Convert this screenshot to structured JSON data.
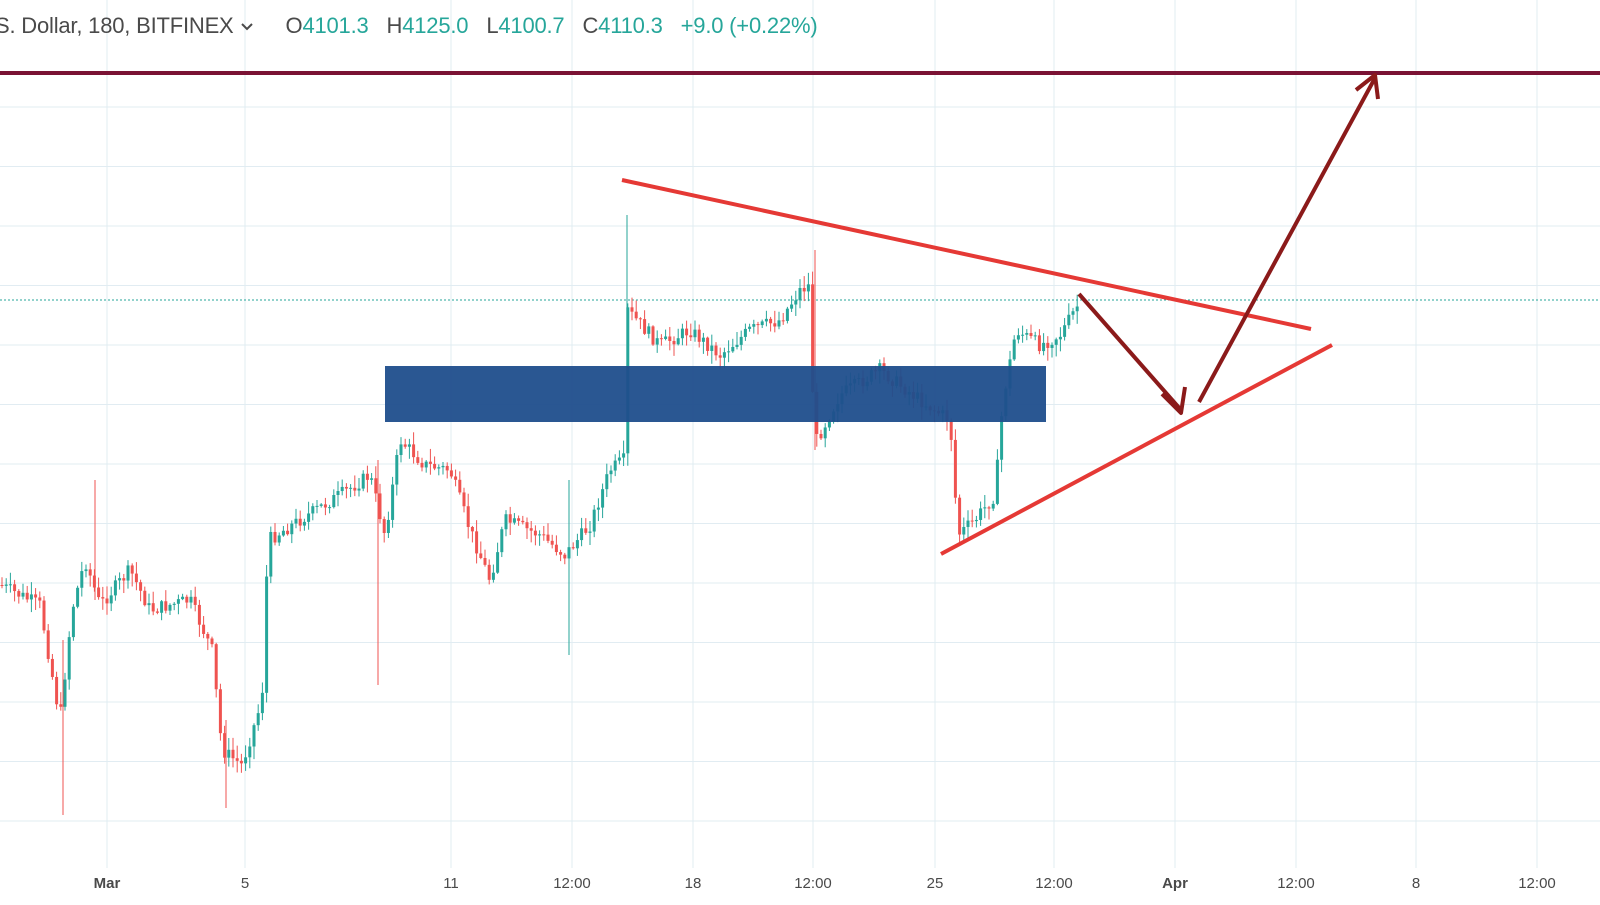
{
  "legend": {
    "symbol": "S. Dollar, 180, BITFINEX",
    "open_key": "O",
    "open": "4101.3",
    "high_key": "H",
    "high": "4125.0",
    "low_key": "L",
    "low": "4100.7",
    "close_key": "C",
    "close": "4110.3",
    "change": "+9.0 (+0.22%)",
    "chevron": "chevron-down-icon"
  },
  "colors": {
    "up": "#26a69a",
    "down": "#ef5350",
    "resistance": "#7a1234",
    "trendline": "#e53935",
    "arrow": "#8b1a1a",
    "zone": "#1f4e8c",
    "grid": "#e1ecf2",
    "last_price_line": "#26a69a"
  },
  "chart_data": {
    "type": "candlestick",
    "interval": "180",
    "exchange": "BITFINEX",
    "x_axis": {
      "ticks": [
        {
          "label": "Mar",
          "bold": true
        },
        {
          "label": "5",
          "bold": false
        },
        {
          "label": "11",
          "bold": false
        },
        {
          "label": "12:00",
          "bold": false
        },
        {
          "label": "18",
          "bold": false
        },
        {
          "label": "12:00",
          "bold": false
        },
        {
          "label": "25",
          "bold": false
        },
        {
          "label": "12:00",
          "bold": false
        },
        {
          "label": "Apr",
          "bold": true
        },
        {
          "label": "12:00",
          "bold": false
        },
        {
          "label": "8",
          "bold": false
        },
        {
          "label": "12:00",
          "bold": false
        }
      ]
    },
    "grid": true,
    "last_bar": {
      "open": 4101.3,
      "high": 4125.0,
      "low": 4100.7,
      "close": 4110.3,
      "change": 9.0,
      "change_pct": 0.22
    },
    "drawings": [
      "horizontal resistance line",
      "support/resistance zone",
      "descending trendline",
      "ascending trendline",
      "down arrow",
      "up arrow"
    ]
  }
}
